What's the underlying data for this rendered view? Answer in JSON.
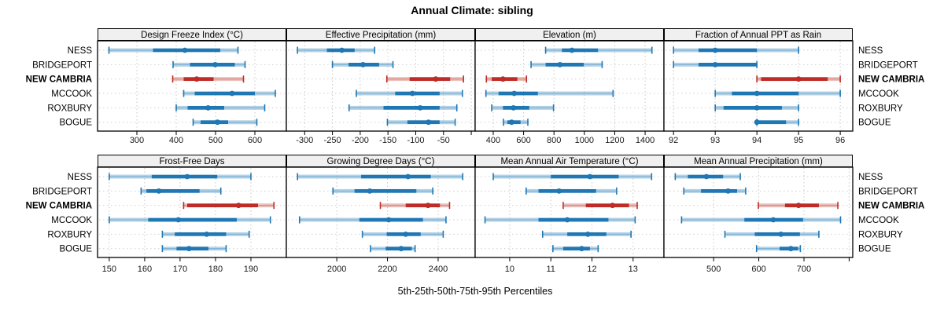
{
  "title": "Annual Climate: sibling",
  "footer": "5th-25th-50th-75th-95th Percentiles",
  "row_labels": [
    "NESS",
    "BRIDGEPORT",
    "NEW CAMBRIA",
    "MCCOOK",
    "ROXBURY",
    "BOGUE"
  ],
  "highlight_series": "NEW CAMBRIA",
  "colors": {
    "blue": "#1f77b4",
    "blue_light": "#9dc5df",
    "red": "#bf2b26",
    "red_light": "#e5aba6",
    "strip_bg": "#f0f0f0",
    "panel_bg": "#ffffff",
    "border": "#000000",
    "grid": "#c9c9c9",
    "row_grid": "#d0d0d0",
    "tick_text": "#1a1a1a"
  },
  "chart_data": {
    "type": "percentile-dotplot",
    "layout": {
      "rows": 2,
      "cols": 4
    },
    "percentiles": [
      "5th",
      "25th",
      "50th",
      "75th",
      "95th"
    ],
    "panels": [
      {
        "title": "Design Freeze Index (°C)",
        "xlim": [
          200,
          680
        ],
        "ticks": [
          {
            "v": 300,
            "label": "300"
          },
          {
            "v": 400,
            "label": "400"
          },
          {
            "v": 500,
            "label": "500"
          },
          {
            "v": 600,
            "label": "600"
          }
        ],
        "series": [
          [
            229,
            341,
            422,
            512,
            557
          ],
          [
            392,
            435,
            499,
            549,
            575
          ],
          [
            391,
            419,
            452,
            495,
            571
          ],
          [
            419,
            447,
            542,
            600,
            652
          ],
          [
            400,
            429,
            481,
            522,
            625
          ],
          [
            443,
            462,
            505,
            532,
            605
          ]
        ]
      },
      {
        "title": "Effective Precipitation (mm)",
        "xlim": [
          -333,
          7
        ],
        "ticks": [
          {
            "v": -300,
            "label": "-300"
          },
          {
            "v": -250,
            "label": "-250"
          },
          {
            "v": -200,
            "label": "-200"
          },
          {
            "v": -150,
            "label": "-150"
          },
          {
            "v": -100,
            "label": "-100"
          },
          {
            "v": -50,
            "label": "-50"
          },
          {
            "v": 0,
            "label": ""
          }
        ],
        "series": [
          [
            -313,
            -260,
            -233,
            -210,
            -174
          ],
          [
            -250,
            -221,
            -195,
            -166,
            -141
          ],
          [
            -152,
            -111,
            -64,
            -38,
            -14
          ],
          [
            -207,
            -137,
            -106,
            -57,
            -16
          ],
          [
            -220,
            -158,
            -92,
            -57,
            -26
          ],
          [
            -151,
            -115,
            -77,
            -57,
            -29
          ]
        ]
      },
      {
        "title": "Elevation (m)",
        "xlim": [
          281,
          1524
        ],
        "ticks": [
          {
            "v": 400,
            "label": "400"
          },
          {
            "v": 600,
            "label": "600"
          },
          {
            "v": 800,
            "label": "800"
          },
          {
            "v": 1000,
            "label": "1000"
          },
          {
            "v": 1200,
            "label": "1200"
          },
          {
            "v": 1400,
            "label": "1400"
          }
        ],
        "series": [
          [
            745,
            852,
            918,
            1090,
            1445
          ],
          [
            649,
            745,
            839,
            996,
            1117
          ],
          [
            355,
            390,
            464,
            559,
            619
          ],
          [
            352,
            435,
            538,
            694,
            1189
          ],
          [
            390,
            464,
            533,
            637,
            797
          ],
          [
            467,
            493,
            521,
            580,
            628
          ]
        ]
      },
      {
        "title": "Fraction of Annual PPT as Rain",
        "xlim": [
          91.77,
          96.3
        ],
        "ticks": [
          {
            "v": 92,
            "label": "92"
          },
          {
            "v": 93,
            "label": "93"
          },
          {
            "v": 94,
            "label": "94"
          },
          {
            "v": 95,
            "label": "95"
          },
          {
            "v": 96,
            "label": "96"
          }
        ],
        "series": [
          [
            92,
            92.6,
            93,
            94,
            95
          ],
          [
            92,
            92.6,
            93,
            94,
            94
          ],
          [
            94,
            94.1,
            95,
            95.7,
            96
          ],
          [
            93,
            93.4,
            94,
            95,
            96
          ],
          [
            93,
            93.2,
            94,
            94.6,
            95
          ],
          [
            94,
            94,
            94,
            94.7,
            95
          ]
        ]
      },
      {
        "title": "Frost-Free Days",
        "xlim": [
          146.7,
          200
        ],
        "ticks": [
          {
            "v": 150,
            "label": "150"
          },
          {
            "v": 160,
            "label": "160"
          },
          {
            "v": 170,
            "label": "170"
          },
          {
            "v": 180,
            "label": "180"
          },
          {
            "v": 190,
            "label": "190"
          }
        ],
        "series": [
          [
            150,
            162,
            172,
            180.5,
            190
          ],
          [
            159,
            160.5,
            164,
            175.5,
            181.5
          ],
          [
            171,
            172,
            186.5,
            192,
            196.5
          ],
          [
            150,
            161,
            169.5,
            186,
            195.5
          ],
          [
            165,
            168.5,
            177.5,
            183,
            189.5
          ],
          [
            165,
            169,
            172.5,
            178,
            183
          ]
        ]
      },
      {
        "title": "Growing Degree Days (°C)",
        "xlim": [
          1801,
          2546
        ],
        "ticks": [
          {
            "v": 2000,
            "label": "2000"
          },
          {
            "v": 2200,
            "label": "2200"
          },
          {
            "v": 2400,
            "label": "2400"
          }
        ],
        "series": [
          [
            1845,
            2096,
            2281,
            2371,
            2497
          ],
          [
            1985,
            2070,
            2130,
            2314,
            2379
          ],
          [
            2172,
            2272,
            2360,
            2407,
            2445
          ],
          [
            1853,
            2089,
            2205,
            2340,
            2431
          ],
          [
            2101,
            2197,
            2272,
            2331,
            2420
          ],
          [
            2133,
            2193,
            2254,
            2296,
            2309
          ]
        ]
      },
      {
        "title": "Mean Annual Air Temperature (°C)",
        "xlim": [
          9.16,
          13.75
        ],
        "ticks": [
          {
            "v": 10,
            "label": "10"
          },
          {
            "v": 11,
            "label": "11"
          },
          {
            "v": 12,
            "label": "12"
          },
          {
            "v": 13,
            "label": "13"
          }
        ],
        "series": [
          [
            9.6,
            11.0,
            11.95,
            12.65,
            13.45
          ],
          [
            10.4,
            10.7,
            11.2,
            12.1,
            12.6
          ],
          [
            11.3,
            11.85,
            12.5,
            12.9,
            13.1
          ],
          [
            9.4,
            10.7,
            11.4,
            12.4,
            13.05
          ],
          [
            10.8,
            11.4,
            11.9,
            12.35,
            12.95
          ],
          [
            11.05,
            11.3,
            11.75,
            11.95,
            12.15
          ]
        ]
      },
      {
        "title": "Mean Annual Precipitation (mm)",
        "xlim": [
          390,
          808
        ],
        "ticks": [
          {
            "v": 500,
            "label": "500"
          },
          {
            "v": 600,
            "label": "600"
          },
          {
            "v": 700,
            "label": "700"
          },
          {
            "v": 800,
            "label": ""
          }
        ],
        "series": [
          [
            415,
            443,
            484,
            521,
            559
          ],
          [
            434,
            472,
            532,
            552,
            571
          ],
          [
            599,
            658,
            688,
            733,
            775
          ],
          [
            429,
            568,
            632,
            698,
            781
          ],
          [
            525,
            591,
            649,
            691,
            733
          ],
          [
            595,
            646,
            671,
            687,
            692
          ]
        ]
      }
    ]
  }
}
